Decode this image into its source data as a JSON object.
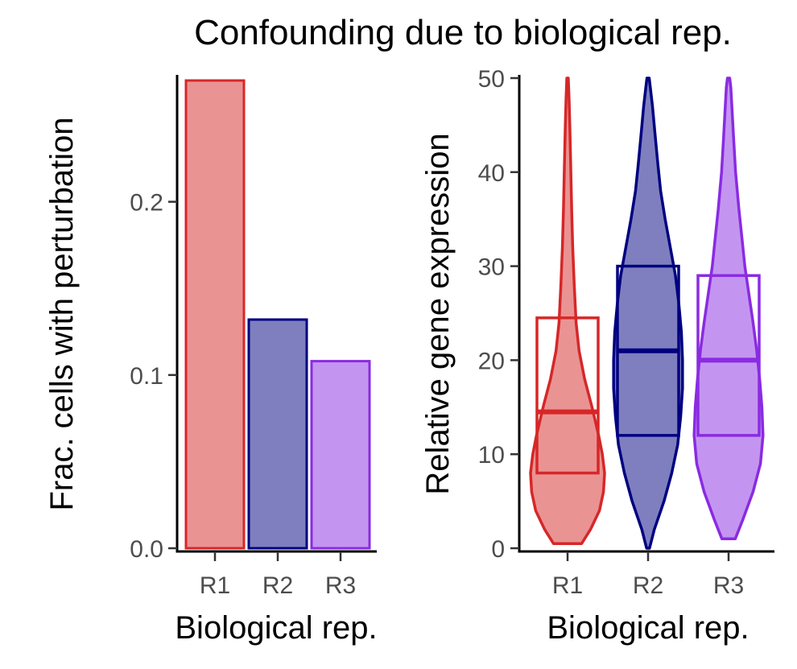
{
  "title": "Confounding due to biological rep.",
  "colors": {
    "R1": "#d62728",
    "R2": "#000080",
    "R3": "#8a2be2"
  },
  "chart_data": [
    {
      "type": "bar",
      "categories": [
        "R1",
        "R2",
        "R3"
      ],
      "values": [
        0.27,
        0.132,
        0.108
      ],
      "xlabel": "Biological rep.",
      "ylabel": "Frac. cells with perturbation",
      "ylim": [
        0,
        0.27
      ],
      "yticks": [
        "0.0",
        "0.1",
        "0.2"
      ],
      "grid": false,
      "legend": "none"
    },
    {
      "type": "violin",
      "categories": [
        "R1",
        "R2",
        "R3"
      ],
      "xlabel": "Biological rep.",
      "ylabel": "Relative gene expression",
      "ylim": [
        0,
        50
      ],
      "yticks": [
        "0",
        "10",
        "20",
        "30",
        "40",
        "50"
      ],
      "grid": false,
      "legend": "none",
      "series": [
        {
          "category": "R1",
          "min": 0.5,
          "max": 50,
          "q1": 8,
          "median": 14.5,
          "q3": 24.5,
          "density": [
            [
              0.5,
              0.38
            ],
            [
              2,
              0.62
            ],
            [
              4,
              0.86
            ],
            [
              6,
              0.97
            ],
            [
              8,
              1.0
            ],
            [
              10,
              0.94
            ],
            [
              12,
              0.84
            ],
            [
              15,
              0.66
            ],
            [
              18,
              0.46
            ],
            [
              21,
              0.31
            ],
            [
              24,
              0.23
            ],
            [
              28,
              0.18
            ],
            [
              32,
              0.14
            ],
            [
              36,
              0.11
            ],
            [
              40,
              0.09
            ],
            [
              45,
              0.06
            ],
            [
              48,
              0.04
            ],
            [
              50,
              0.02
            ]
          ]
        },
        {
          "category": "R2",
          "min": 0,
          "max": 50,
          "q1": 12,
          "median": 21,
          "q3": 30,
          "density": [
            [
              0,
              0.04
            ],
            [
              2,
              0.17
            ],
            [
              5,
              0.43
            ],
            [
              8,
              0.64
            ],
            [
              11,
              0.8
            ],
            [
              14,
              0.88
            ],
            [
              17,
              0.93
            ],
            [
              20,
              0.93
            ],
            [
              23,
              0.9
            ],
            [
              26,
              0.83
            ],
            [
              29,
              0.74
            ],
            [
              32,
              0.6
            ],
            [
              35,
              0.46
            ],
            [
              38,
              0.34
            ],
            [
              41,
              0.26
            ],
            [
              44,
              0.19
            ],
            [
              47,
              0.12
            ],
            [
              49,
              0.06
            ],
            [
              50,
              0.03
            ]
          ]
        },
        {
          "category": "R3",
          "min": 1,
          "max": 50,
          "q1": 12,
          "median": 20,
          "q3": 29,
          "density": [
            [
              1,
              0.18
            ],
            [
              3,
              0.38
            ],
            [
              6,
              0.66
            ],
            [
              9,
              0.86
            ],
            [
              12,
              0.93
            ],
            [
              15,
              0.9
            ],
            [
              18,
              0.84
            ],
            [
              21,
              0.76
            ],
            [
              24,
              0.66
            ],
            [
              27,
              0.55
            ],
            [
              30,
              0.44
            ],
            [
              33,
              0.36
            ],
            [
              36,
              0.28
            ],
            [
              40,
              0.19
            ],
            [
              44,
              0.13
            ],
            [
              47,
              0.09
            ],
            [
              49,
              0.06
            ],
            [
              50,
              0.03
            ]
          ]
        }
      ]
    }
  ]
}
